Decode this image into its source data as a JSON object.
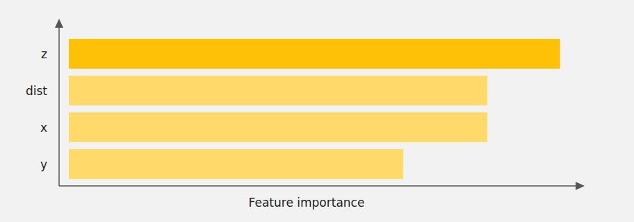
{
  "chart_data": {
    "type": "bar",
    "orientation": "horizontal",
    "categories": [
      "z",
      "dist",
      "x",
      "y"
    ],
    "values": [
      1.0,
      0.852,
      0.852,
      0.681
    ],
    "colors": [
      "#ffc107",
      "#ffda6b",
      "#ffda6b",
      "#ffda6b"
    ],
    "xlabel": "Feature importance",
    "xlim": [
      0,
      1.05
    ],
    "tick_labels": false,
    "grid": false
  }
}
